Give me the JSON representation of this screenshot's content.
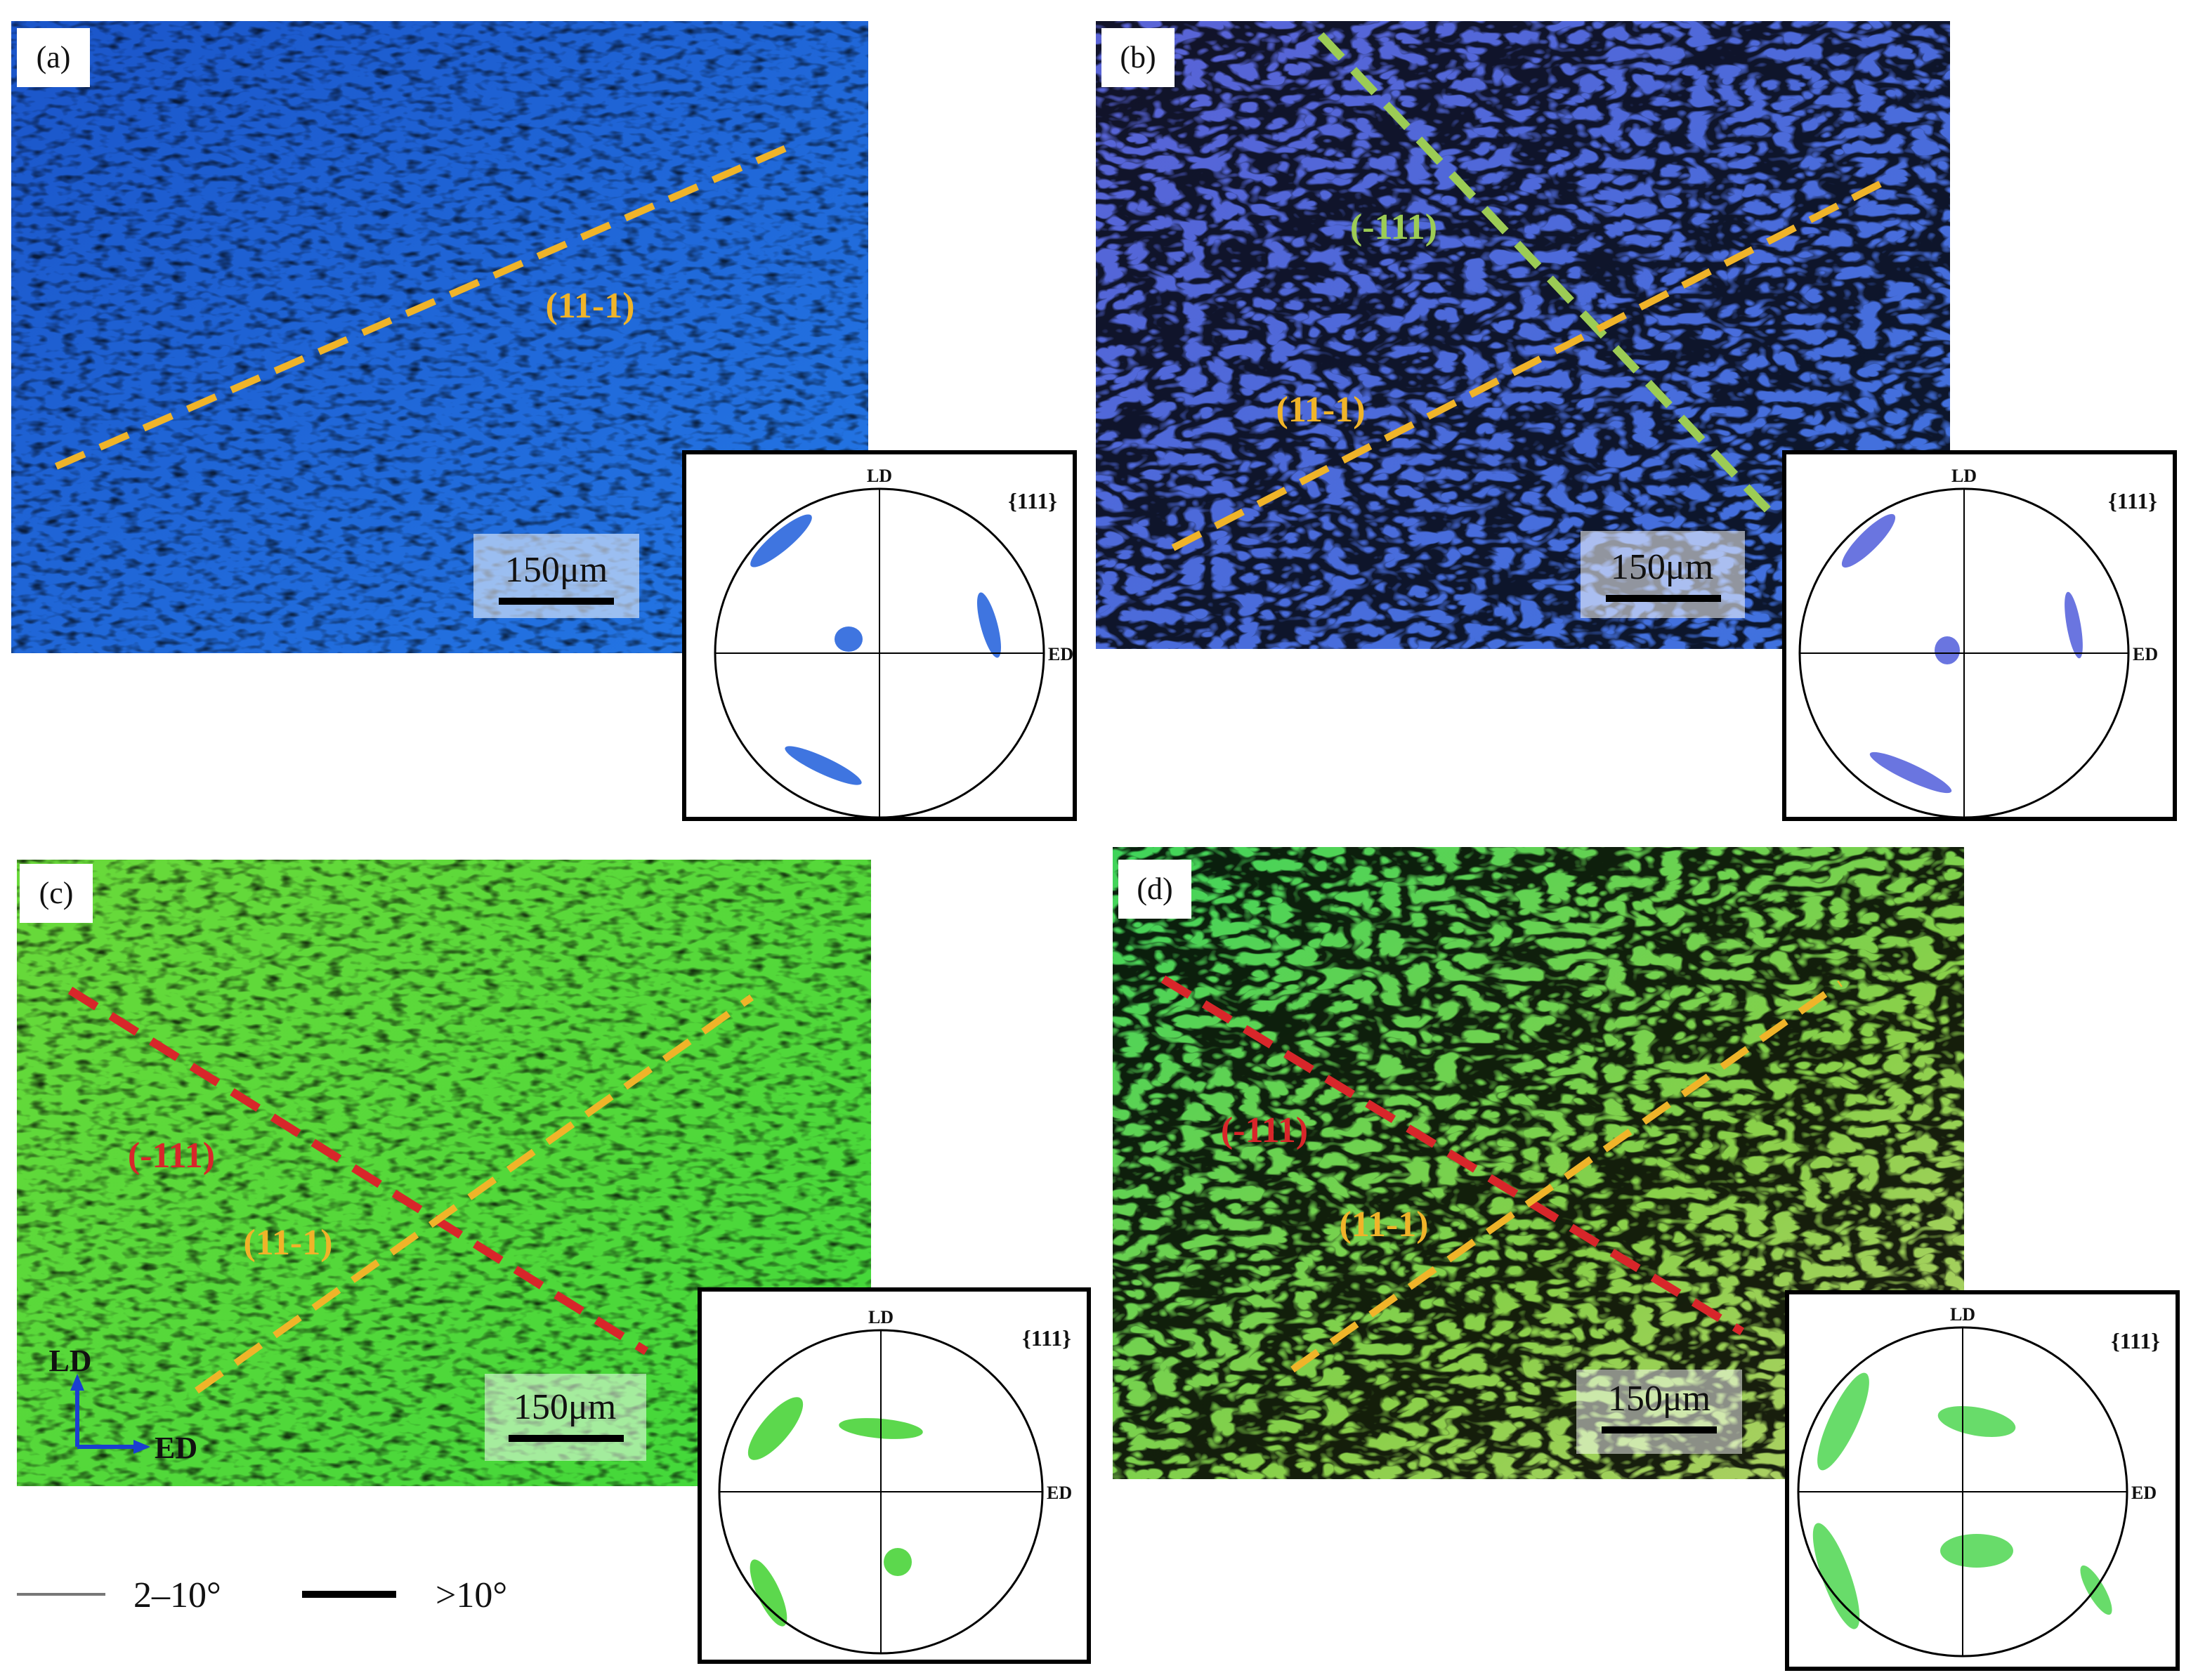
{
  "panels": [
    {
      "label": "(a)",
      "planes": [
        "(11-1)"
      ],
      "scale_bar": "150μm",
      "pole_figure": {
        "title": "{111}",
        "top": "LD",
        "right": "ED"
      }
    },
    {
      "label": "(b)",
      "planes": [
        "(-111)",
        "(11-1)"
      ],
      "scale_bar": "150μm",
      "pole_figure": {
        "title": "{111}",
        "top": "LD",
        "right": "ED"
      }
    },
    {
      "label": "(c)",
      "planes": [
        "(-111)",
        "(11-1)"
      ],
      "scale_bar": "150μm",
      "pole_figure": {
        "title": "{111}",
        "top": "LD",
        "right": "ED"
      }
    },
    {
      "label": "(d)",
      "planes": [
        "(-111)",
        "(11-1)"
      ],
      "scale_bar": "150μm",
      "pole_figure": {
        "title": "{111}",
        "top": "LD",
        "right": "ED"
      }
    }
  ],
  "axes_indicator": {
    "up": "LD",
    "right": "ED"
  },
  "legend": [
    {
      "label": "2–10°"
    },
    {
      "label": ">10°"
    }
  ]
}
